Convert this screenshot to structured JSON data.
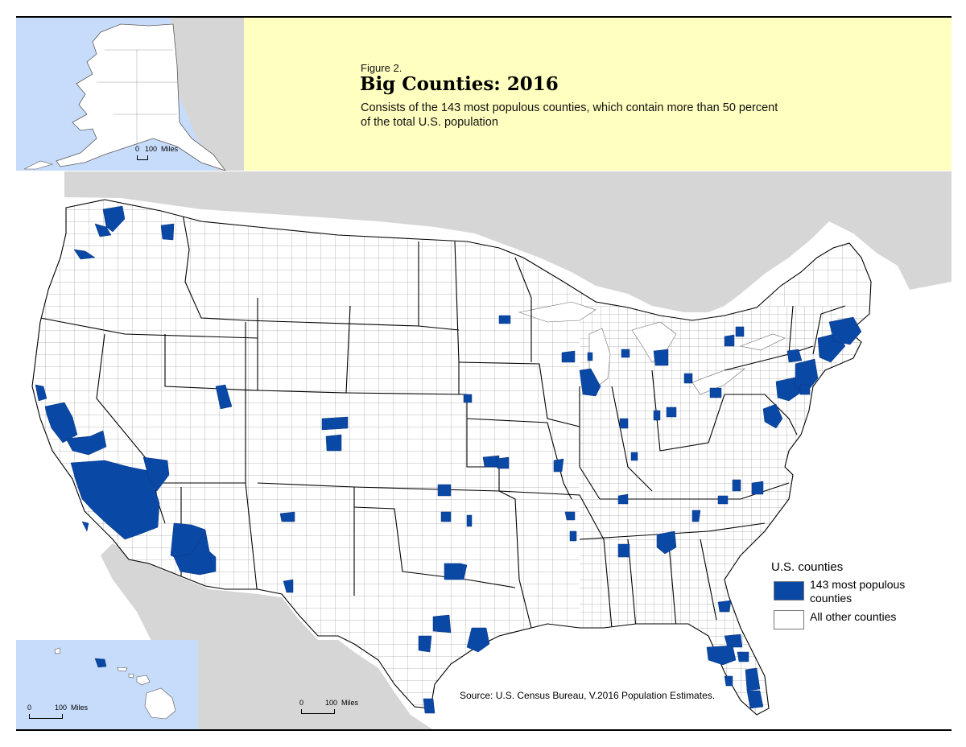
{
  "figure": {
    "label": "Figure 2.",
    "title": "Big Counties: 2016",
    "subtitle": "Consists of the 143 most populous counties, which contain more than 50 percent of the total U.S. population"
  },
  "legend": {
    "title": "U.S. counties",
    "items": [
      {
        "label": "143 most populous counties",
        "color": "#0a48a6"
      },
      {
        "label": "All other counties",
        "color": "#ffffff"
      }
    ]
  },
  "scales": {
    "alaska": {
      "zero": "0",
      "label": "100  Miles"
    },
    "hawaii": {
      "zero": "0",
      "label": "100  Miles"
    },
    "main": {
      "zero": "0",
      "label": "100  Miles"
    }
  },
  "source": "Source: U.S. Census Bureau, V.2016 Population Estimates.",
  "colors": {
    "big_county": "#0a48a6",
    "other_county": "#ffffff",
    "land_outside_us": "#d6d6d6",
    "water": "#ffffff",
    "inset_water": "#c7dcfa",
    "title_background": "#ffffc0"
  },
  "map": {
    "big_county_areas": [
      "King/Snohomish/Pierce, WA",
      "Clark, WA",
      "Spokane, WA",
      "Multnomah/Washington, OR",
      "Sacramento, CA",
      "San Francisco Bay Area, CA",
      "Fresno, CA",
      "Kern, CA",
      "Los Angeles, CA",
      "San Bernardino, CA",
      "Riverside, CA",
      "San Diego, CA",
      "Orange, CA",
      "Clark, NV",
      "Salt Lake/Utah, UT",
      "Maricopa, AZ",
      "Pima, AZ",
      "Bernalillo, NM",
      "Denver/Arapahoe/Jefferson, CO",
      "El Paso, CO",
      "El Paso, TX",
      "Sedgwick, KS",
      "Oklahoma, OK",
      "Tulsa, OK",
      "Dallas/Tarrant, TX",
      "Travis, TX",
      "Bexar, TX",
      "Harris, TX",
      "Hidalgo, TX",
      "Jackson, MO",
      "St. Louis, MO",
      "Hennepin, MN",
      "Milwaukee, WI",
      "Cook/DuPage, IL",
      "Marion, IN",
      "Kent, MI",
      "Wayne/Oakland/Macomb, MI",
      "Cuyahoga, OH",
      "Franklin, OH",
      "Hamilton, OH",
      "Jefferson, KY",
      "Davidson, TN",
      "Shelby, TN",
      "Fulton/DeKalb/Gwinnett, GA",
      "Jefferson, AL",
      "Mecklenburg, NC",
      "Wake, NC",
      "Guilford, NC",
      "Allegheny, PA",
      "Philadelphia, PA",
      "New York City, NY",
      "Monroe, NY",
      "Erie, NY",
      "Fairfield/New Haven/Hartford, CT",
      "Suffolk/Middlesex, MA",
      "Baltimore, MD",
      "Fairfax/Montgomery, VA-MD",
      "Duval, FL",
      "Orange, FL",
      "Hillsborough/Pinellas, FL",
      "Palm Beach/Broward/Miami-Dade, FL",
      "Honolulu, HI"
    ]
  }
}
